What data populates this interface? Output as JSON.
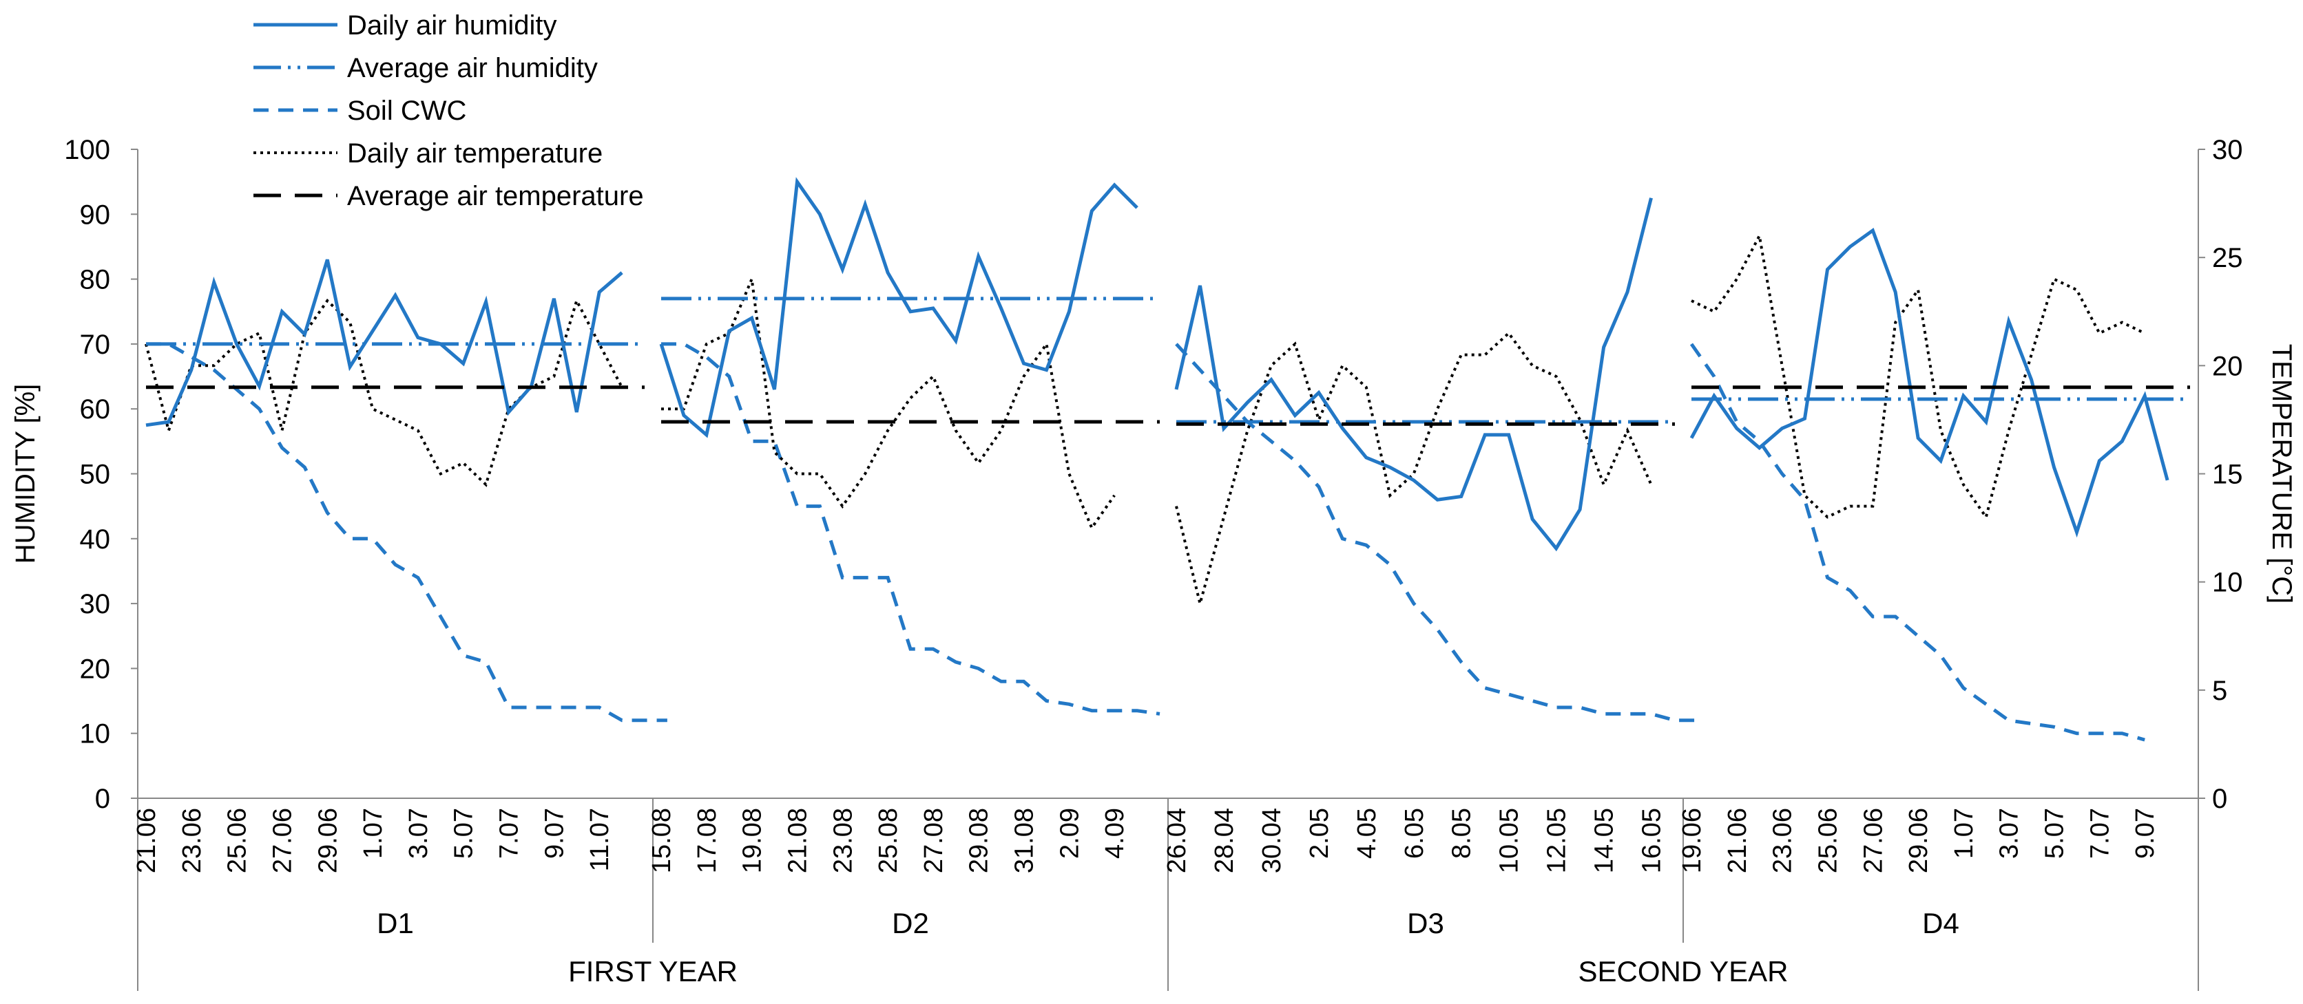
{
  "colors": {
    "humidity": "#2378C6",
    "soil": "#2378C6",
    "temperature": "#000000",
    "axis": "#888888"
  },
  "chart_data": {
    "type": "line",
    "title": "",
    "ylabel": "HUMIDITY [%]",
    "y2label": "TEMPERATURE  [°C]",
    "ylim": [
      0,
      100
    ],
    "y2lim": [
      0,
      30
    ],
    "yticks": [
      "0",
      "10",
      "20",
      "30",
      "40",
      "50",
      "60",
      "70",
      "80",
      "90",
      "100"
    ],
    "y2ticks": [
      "0",
      "5",
      "10",
      "15",
      "20",
      "25",
      "30"
    ],
    "legend_position": "top-left",
    "legend": [
      {
        "key": "daily_humidity",
        "label": "Daily air humidity"
      },
      {
        "key": "avg_humidity",
        "label": "Average air humidity"
      },
      {
        "key": "soil_cwc",
        "label": "Soil CWC"
      },
      {
        "key": "daily_temp",
        "label": "Daily air temperature"
      },
      {
        "key": "avg_temp",
        "label": "Average air temperature"
      }
    ],
    "years": [
      {
        "label": "FIRST YEAR",
        "panels": [
          0,
          1
        ]
      },
      {
        "label": "SECOND YEAR",
        "panels": [
          2,
          3
        ]
      }
    ],
    "panels": [
      {
        "label": "D1",
        "tick_labels": [
          "21.06",
          "23.06",
          "25.06",
          "27.06",
          "29.06",
          "1.07",
          "3.07",
          "5.07",
          "7.07",
          "9.07",
          "11.07"
        ],
        "n_points": 23,
        "daily_humidity": [
          57.5,
          58,
          66,
          79.5,
          70,
          63.5,
          75,
          71.5,
          83,
          66.5,
          72,
          77.5,
          71,
          70,
          67,
          76.5,
          59.5,
          63.5,
          77,
          59.5,
          78,
          81
        ],
        "avg_humidity": 70,
        "soil_cwc": [
          70,
          70,
          68,
          66,
          63,
          60,
          54,
          51,
          44,
          40,
          40,
          36,
          34,
          28,
          22,
          21,
          14,
          14,
          14,
          14,
          14,
          12,
          12,
          12
        ],
        "daily_temp": [
          21,
          17,
          20,
          20,
          21,
          21.5,
          17,
          21.5,
          23,
          22,
          18,
          17.5,
          17,
          15,
          15.5,
          14.5,
          18,
          19,
          19.5,
          23,
          21,
          19
        ],
        "avg_temp": 19
      },
      {
        "label": "D2",
        "tick_labels": [
          "15.08",
          "17.08",
          "19.08",
          "21.08",
          "23.08",
          "25.08",
          "27.08",
          "29.08",
          "31.08",
          "2.09",
          "4.09"
        ],
        "n_points": 23,
        "daily_humidity": [
          70,
          59,
          56,
          72,
          74,
          63,
          95,
          90,
          81.5,
          91.5,
          81,
          75,
          75.5,
          70.5,
          83.5,
          75.5,
          67,
          66,
          75,
          90.5,
          94.5,
          91
        ],
        "avg_humidity": 77,
        "soil_cwc": [
          70,
          70,
          68,
          65,
          55,
          55,
          45,
          45,
          34,
          34,
          34,
          23,
          23,
          21,
          20,
          18,
          18,
          15,
          14.5,
          13.5,
          13.5,
          13.5,
          13
        ],
        "daily_temp": [
          18,
          18,
          21,
          21.5,
          24,
          16,
          15,
          15,
          13.5,
          15,
          17,
          18.5,
          19.5,
          17,
          15.5,
          17,
          19.5,
          21,
          15,
          12.5,
          14
        ],
        "avg_temp": 17.4
      },
      {
        "label": "D3",
        "tick_labels": [
          "26.04",
          "28.04",
          "30.04",
          "2.05",
          "4.05",
          "6.05",
          "8.05",
          "10.05",
          "12.05",
          "14.05",
          "16.05"
        ],
        "n_points": 22,
        "daily_humidity": [
          63,
          79,
          57,
          61,
          64.5,
          59,
          62.5,
          57,
          52.5,
          51,
          49,
          46,
          46.5,
          56,
          56,
          43,
          38.5,
          44.5,
          69.5,
          78,
          92.5
        ],
        "avg_humidity": 58,
        "soil_cwc": [
          70,
          66,
          62,
          58,
          55,
          52,
          48,
          40,
          39,
          36,
          30,
          26,
          21,
          17,
          16,
          15,
          14,
          14,
          13,
          13,
          13,
          12,
          12
        ],
        "daily_temp": [
          13.5,
          9,
          13,
          17,
          20,
          21,
          17.5,
          20,
          19,
          14,
          15,
          18,
          20.5,
          20.5,
          21.5,
          20,
          19.5,
          17.5,
          14.5,
          17,
          14.5
        ],
        "avg_temp": 17.3
      },
      {
        "label": "D4",
        "tick_labels": [
          "19.06",
          "21.06",
          "23.06",
          "25.06",
          "27.06",
          "29.06",
          "1.07",
          "3.07",
          "5.07",
          "7.07",
          "9.07"
        ],
        "n_points": 23,
        "daily_humidity": [
          55.5,
          62,
          57,
          54,
          57,
          58.5,
          81.5,
          85,
          87.5,
          78,
          55.5,
          52,
          62,
          58,
          73.5,
          64.5,
          51,
          41,
          52,
          55,
          62,
          49
        ],
        "avg_humidity": 61.5,
        "soil_cwc": [
          70,
          65,
          58,
          55,
          50,
          46,
          34,
          32,
          28,
          28,
          25,
          22,
          17,
          14.5,
          12,
          11.5,
          11,
          10,
          10,
          10,
          9
        ],
        "daily_temp": [
          23,
          22.5,
          24,
          26,
          20,
          14,
          13,
          13.5,
          13.5,
          22,
          23.5,
          17,
          14.5,
          13,
          17,
          20.5,
          24,
          23.5,
          21.5,
          22,
          21.5
        ],
        "avg_temp": 19
      }
    ]
  }
}
